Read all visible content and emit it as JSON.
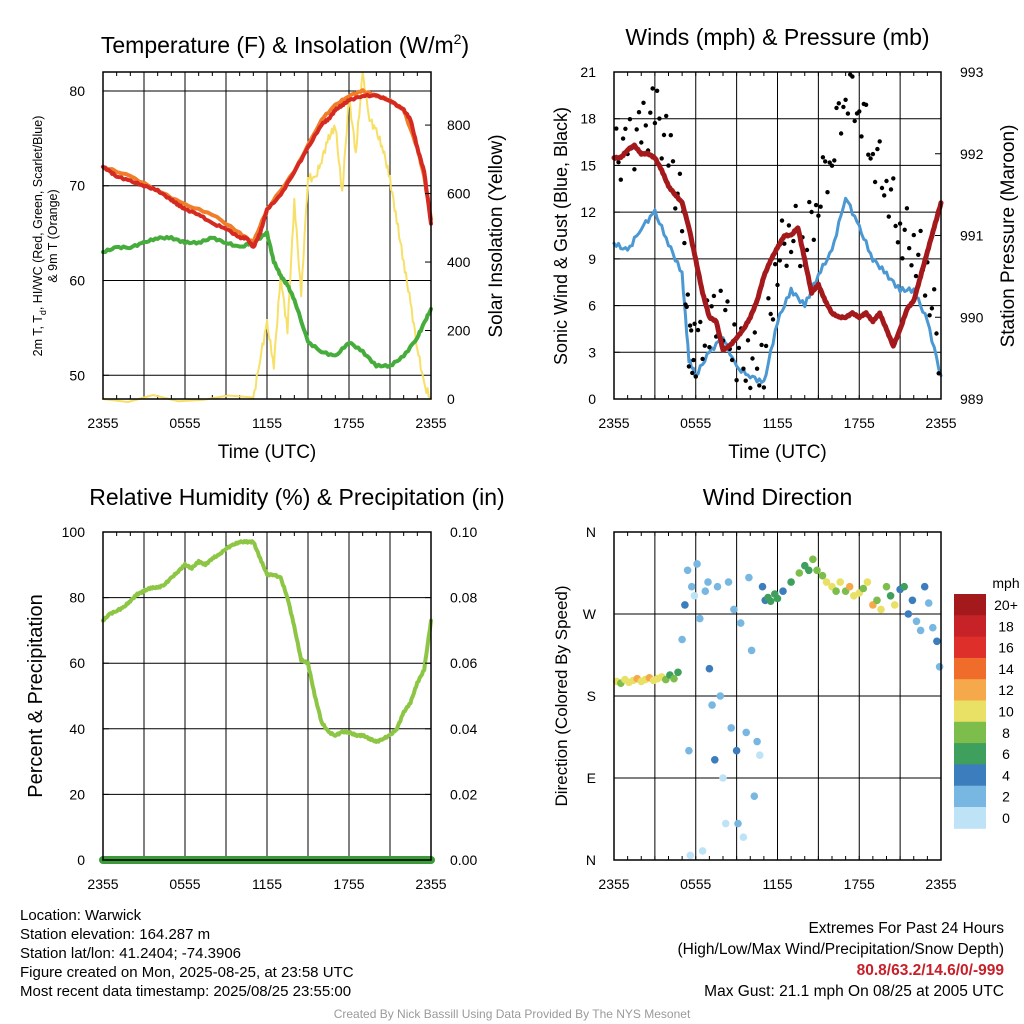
{
  "chart_data": [
    {
      "type": "line",
      "title": "Temperature (F) & Insolation (W/m",
      "title_sup": "2",
      "title_end": ")",
      "ylabel_line1": "2m T, T",
      "ylabel_sub": "d",
      "ylabel_line1_end": ", HI/WC (Red, Green, Scarlet/Blue)",
      "ylabel_line2": "& 9m T (Orange)",
      "ylabel_right": "Solar Insolation (Yellow)",
      "xlabel": "Time (UTC)",
      "x_ticks": [
        "2355",
        "0555",
        "1155",
        "1755",
        "2355"
      ],
      "y_ticks": [
        50,
        60,
        70,
        80
      ],
      "y_ticks_right": [
        0,
        200,
        400,
        600,
        800
      ],
      "ylim": [
        47.5,
        82
      ],
      "ylim_right": [
        0,
        955
      ],
      "x_range_hours": [
        0,
        24
      ],
      "colors": {
        "temp": "#d42a22",
        "temp9m": "#f07d2a",
        "dew": "#46ad3c",
        "solar": "#f7e067"
      },
      "series": [
        {
          "name": "2m T",
          "color": "#d42a22",
          "x": [
            0,
            0.5,
            1,
            2,
            3,
            4,
            5,
            5.5,
            6,
            7,
            8,
            9,
            10,
            10.5,
            11,
            11.5,
            12,
            13,
            14,
            15,
            16,
            16.5,
            17,
            17.5,
            18,
            19,
            20,
            21,
            22,
            22.5,
            23,
            23.5,
            24
          ],
          "values": [
            72,
            71.5,
            71,
            70.5,
            70,
            69.5,
            68.5,
            68,
            67.5,
            67,
            66,
            65.5,
            64.5,
            64.5,
            63.5,
            65,
            67.5,
            69,
            71.5,
            74,
            76.5,
            77,
            78,
            78.5,
            79,
            79.5,
            79.5,
            79,
            78,
            77,
            74,
            71.5,
            66
          ]
        },
        {
          "name": "9m T",
          "color": "#f07d2a",
          "x": [
            0,
            2,
            4,
            6,
            8,
            10,
            11,
            12,
            14,
            16,
            17,
            18,
            19,
            20,
            21,
            22,
            23,
            23.5,
            24
          ],
          "values": [
            72,
            71,
            69.5,
            68,
            67,
            65,
            64,
            67.5,
            71.5,
            77,
            78.5,
            79.5,
            80,
            79.5,
            79,
            78,
            74,
            71,
            66.5
          ]
        },
        {
          "name": "Td",
          "color": "#46ad3c",
          "x": [
            0,
            1,
            2,
            3,
            4,
            5,
            6,
            7,
            8,
            9,
            10,
            11,
            12,
            12.5,
            13,
            13.5,
            14,
            15,
            16,
            17,
            18,
            19,
            20,
            21,
            22,
            23,
            23.5,
            24
          ],
          "values": [
            63,
            63.5,
            63.5,
            64,
            64.5,
            64.5,
            64,
            64,
            64.5,
            64,
            63.5,
            64,
            65,
            62,
            60.5,
            59.5,
            58,
            53.5,
            52.5,
            52,
            53.5,
            52.5,
            51,
            51,
            52,
            54,
            55.5,
            57
          ]
        },
        {
          "name": "Solar",
          "color": "#f7e067",
          "axis": "right",
          "x": [
            0,
            11,
            11.5,
            12,
            12.5,
            13,
            13.5,
            14,
            14.5,
            15,
            15.5,
            16,
            16.5,
            17,
            17.5,
            18,
            18.5,
            19,
            19.5,
            20,
            20.5,
            21,
            21.5,
            22,
            22.5,
            23,
            23.5,
            24
          ],
          "values": [
            0,
            0,
            120,
            220,
            100,
            360,
            200,
            580,
            300,
            650,
            640,
            700,
            760,
            800,
            600,
            880,
            720,
            950,
            820,
            780,
            730,
            640,
            520,
            400,
            280,
            150,
            40,
            0
          ]
        }
      ]
    },
    {
      "type": "scatter",
      "title": "Winds (mph) & Pressure (mb)",
      "ylabel": "Sonic Wind & Gust (Blue, Black)",
      "ylabel_right": "Station Pressure (Maroon)",
      "xlabel": "Time (UTC)",
      "x_ticks": [
        "2355",
        "0555",
        "1155",
        "1755",
        "2355"
      ],
      "y_ticks": [
        0,
        3,
        6,
        9,
        12,
        15,
        18,
        21
      ],
      "y_ticks_right": [
        989,
        990,
        991,
        992,
        993
      ],
      "ylim": [
        0,
        21
      ],
      "ylim_right": [
        989,
        993
      ],
      "x_range_hours": [
        0,
        24
      ],
      "colors": {
        "wind": "#4b98d2",
        "gust": "#000000",
        "pressure": "#a3191c"
      },
      "series": [
        {
          "name": "Sonic Wind",
          "color": "#4b98d2",
          "x": [
            0,
            1,
            2,
            3,
            4,
            5,
            5.5,
            6,
            7,
            8,
            9,
            10,
            11,
            12,
            13,
            14,
            15,
            16,
            17,
            18,
            19,
            20,
            21,
            22,
            23,
            24
          ],
          "values": [
            10,
            9.5,
            11,
            12,
            10,
            8,
            2.5,
            1.5,
            3,
            4,
            2,
            1.5,
            1,
            5,
            7,
            6,
            8,
            9.5,
            13,
            11,
            9,
            8,
            7,
            7,
            5,
            1.5
          ]
        },
        {
          "name": "Gust",
          "color": "#000000",
          "x": [
            0,
            1,
            2,
            3,
            4,
            5,
            5.5,
            6,
            7,
            8,
            9,
            10,
            11,
            12,
            13,
            14,
            15,
            16,
            17,
            18,
            19,
            20,
            21,
            22,
            23,
            24
          ],
          "values": [
            15.5,
            16,
            17,
            18.5,
            16,
            12,
            3.5,
            3,
            5,
            5.5,
            3,
            2.5,
            2.5,
            9,
            11,
            10,
            13,
            16,
            20,
            19,
            16,
            14,
            11,
            10,
            8,
            2.5
          ]
        },
        {
          "name": "Pressure",
          "color": "#a3191c",
          "axis": "right",
          "x": [
            0,
            0.5,
            1,
            1.5,
            2,
            2.5,
            3,
            3.5,
            4,
            4.5,
            5,
            5.5,
            6,
            6.5,
            7,
            7.5,
            8,
            8.5,
            9,
            9.5,
            10,
            10.5,
            11,
            11.5,
            12,
            12.5,
            13,
            13.5,
            14,
            14.5,
            15,
            15.5,
            16,
            16.5,
            17,
            17.5,
            18,
            18.5,
            19,
            19.5,
            20,
            20.5,
            21,
            21.5,
            22,
            22.5,
            23,
            23.5,
            24
          ],
          "values": [
            991.95,
            991.95,
            992.05,
            992.1,
            992.0,
            992.0,
            991.95,
            991.8,
            991.6,
            991.5,
            991.4,
            991.1,
            990.7,
            990.3,
            990.0,
            989.95,
            989.6,
            989.65,
            989.75,
            989.85,
            990.0,
            990.2,
            990.5,
            990.7,
            990.85,
            991.0,
            991.0,
            991.1,
            990.7,
            990.3,
            990.4,
            990.2,
            990.05,
            990.0,
            990.0,
            990.05,
            990.0,
            990.05,
            989.95,
            990.05,
            989.85,
            989.65,
            989.85,
            990.1,
            990.2,
            990.5,
            990.8,
            991.1,
            991.4
          ]
        }
      ]
    },
    {
      "type": "line",
      "title": "Relative Humidity (%) & Precipitation (in)",
      "ylabel": "Percent & Precipitation",
      "y_ticks": [
        0,
        20,
        40,
        60,
        80,
        100
      ],
      "y_ticks_right": [
        "0.00",
        "0.02",
        "0.04",
        "0.06",
        "0.08",
        "0.10"
      ],
      "x_ticks": [
        "2355",
        "0555",
        "1155",
        "1755",
        "2355"
      ],
      "ylim": [
        0,
        100
      ],
      "ylim_right": [
        0,
        0.1
      ],
      "x_range_hours": [
        0,
        24
      ],
      "colors": {
        "rh": "#8dc645",
        "precip": "#3d9a3a"
      },
      "series": [
        {
          "name": "RH",
          "color": "#8dc645",
          "x": [
            0,
            0.5,
            1,
            1.5,
            2,
            2.5,
            3,
            3.5,
            4,
            4.5,
            5,
            5.5,
            6,
            6.5,
            7,
            7.5,
            8,
            8.5,
            9,
            9.5,
            10,
            10.5,
            11,
            11.5,
            12,
            12.5,
            13,
            13.5,
            14,
            14.5,
            15,
            15.5,
            16,
            16.5,
            17,
            17.5,
            18,
            18.5,
            19,
            19.5,
            20,
            20.5,
            21,
            21.5,
            22,
            22.5,
            23,
            23.5,
            24
          ],
          "values": [
            73,
            75,
            76,
            77,
            79,
            81,
            82,
            83,
            83,
            84,
            86,
            88,
            90,
            89,
            91,
            90,
            92,
            93,
            95,
            96,
            97,
            97,
            97,
            92,
            87,
            87,
            86,
            80,
            71,
            61,
            60,
            50,
            42,
            39,
            38,
            39,
            39,
            38,
            38,
            37,
            36,
            37,
            38,
            40,
            45,
            48,
            54,
            58,
            73
          ]
        },
        {
          "name": "Precipitation",
          "color": "#3d9a3a",
          "axis": "right",
          "x": [
            0,
            24
          ],
          "values": [
            0,
            0
          ]
        }
      ]
    },
    {
      "type": "scatter",
      "title": "Wind Direction",
      "ylabel": "Direction (Colored By Speed)",
      "y_ticks": [
        "N",
        "E",
        "S",
        "W",
        "N"
      ],
      "x_ticks": [
        "2355",
        "0555",
        "1155",
        "1755",
        "2355"
      ],
      "ylim": [
        0,
        360
      ],
      "x_range_hours": [
        0,
        24
      ],
      "colorbar": {
        "unit": "mph",
        "labels": [
          "20+",
          "18",
          "16",
          "14",
          "12",
          "10",
          "8",
          "6",
          "4",
          "2",
          "0"
        ],
        "colors": [
          "#a3191c",
          "#c72228",
          "#df2f2a",
          "#f06c2a",
          "#f6a94a",
          "#e9e066",
          "#7cbd4b",
          "#3f9f5c",
          "#3c7dbd",
          "#79b7e3",
          "#bfe3f6"
        ]
      },
      "points": [
        [
          0.2,
          196,
          10
        ],
        [
          0.5,
          194,
          9
        ],
        [
          0.8,
          198,
          10
        ],
        [
          1.1,
          195,
          11
        ],
        [
          1.4,
          197,
          10
        ],
        [
          1.7,
          199,
          12
        ],
        [
          2.0,
          196,
          11
        ],
        [
          2.3,
          198,
          11
        ],
        [
          2.6,
          200,
          12
        ],
        [
          2.9,
          197,
          10
        ],
        [
          3.2,
          199,
          11
        ],
        [
          3.5,
          201,
          10
        ],
        [
          3.8,
          198,
          9
        ],
        [
          4.1,
          203,
          7
        ],
        [
          4.4,
          199,
          8
        ],
        [
          4.7,
          206,
          7
        ],
        [
          5.0,
          242,
          3
        ],
        [
          5.2,
          280,
          4
        ],
        [
          5.4,
          318,
          2
        ],
        [
          5.5,
          120,
          2
        ],
        [
          5.6,
          5,
          1
        ],
        [
          5.7,
          300,
          2
        ],
        [
          5.9,
          290,
          1
        ],
        [
          6.1,
          325,
          3
        ],
        [
          6.3,
          265,
          2
        ],
        [
          6.5,
          10,
          1
        ],
        [
          6.7,
          295,
          3
        ],
        [
          6.9,
          305,
          2
        ],
        [
          7.0,
          210,
          4
        ],
        [
          7.2,
          170,
          3
        ],
        [
          7.4,
          110,
          4
        ],
        [
          7.6,
          300,
          3
        ],
        [
          7.8,
          180,
          2
        ],
        [
          8.0,
          90,
          1
        ],
        [
          8.2,
          40,
          1
        ],
        [
          8.4,
          305,
          2
        ],
        [
          8.6,
          145,
          3
        ],
        [
          8.8,
          275,
          2
        ],
        [
          9.0,
          120,
          4
        ],
        [
          9.1,
          40,
          2
        ],
        [
          9.3,
          260,
          2
        ],
        [
          9.5,
          25,
          1
        ],
        [
          9.7,
          140,
          3
        ],
        [
          9.9,
          310,
          3
        ],
        [
          10.1,
          230,
          2
        ],
        [
          10.3,
          70,
          2
        ],
        [
          10.5,
          130,
          3
        ],
        [
          10.7,
          115,
          1
        ],
        [
          10.9,
          300,
          4
        ],
        [
          11.1,
          285,
          5
        ],
        [
          11.3,
          288,
          7
        ],
        [
          11.5,
          284,
          6
        ],
        [
          11.8,
          292,
          6
        ],
        [
          12.0,
          287,
          6
        ],
        [
          12.4,
          295,
          5
        ],
        [
          13.0,
          305,
          7
        ],
        [
          13.6,
          315,
          8
        ],
        [
          14.0,
          323,
          6
        ],
        [
          14.3,
          318,
          7
        ],
        [
          14.6,
          330,
          8
        ],
        [
          14.9,
          318,
          9
        ],
        [
          15.3,
          312,
          8
        ],
        [
          15.6,
          305,
          10
        ],
        [
          16.0,
          300,
          11
        ],
        [
          16.3,
          295,
          9
        ],
        [
          16.6,
          305,
          10
        ],
        [
          17.0,
          295,
          8
        ],
        [
          17.3,
          300,
          12
        ],
        [
          17.6,
          290,
          10
        ],
        [
          18.0,
          293,
          11
        ],
        [
          18.3,
          298,
          9
        ],
        [
          18.6,
          305,
          10
        ],
        [
          19.0,
          280,
          12
        ],
        [
          19.3,
          285,
          8
        ],
        [
          19.6,
          275,
          11
        ],
        [
          20.0,
          300,
          9
        ],
        [
          20.3,
          290,
          7
        ],
        [
          20.6,
          280,
          10
        ],
        [
          21.0,
          297,
          5
        ],
        [
          21.3,
          300,
          6
        ],
        [
          21.6,
          270,
          4
        ],
        [
          21.9,
          285,
          4
        ],
        [
          22.2,
          262,
          3
        ],
        [
          22.5,
          252,
          3
        ],
        [
          22.8,
          300,
          4
        ],
        [
          23.1,
          282,
          2
        ],
        [
          23.4,
          255,
          3
        ],
        [
          23.7,
          240,
          4
        ],
        [
          23.9,
          212,
          2
        ]
      ]
    }
  ],
  "info": {
    "location": "Location: Warwick",
    "elevation": "Station elevation: 164.287 m",
    "latlon": "Station lat/lon: 41.2404; -74.3906",
    "created": "Figure created on Mon, 2025-08-25, at 23:58 UTC",
    "timestamp": "Most recent data timestamp: 2025/08/25 23:55:00"
  },
  "extremes": {
    "title": "Extremes For Past 24 Hours",
    "legend": "(High/Low/Max Wind/Precipitation/Snow Depth)",
    "values": "80.8/63.2/14.6/0/-999",
    "max_gust": "Max Gust: 21.1 mph On 08/25 at 2005 UTC"
  },
  "credit": "Created By Nick Bassill Using Data Provided By The NYS Mesonet"
}
